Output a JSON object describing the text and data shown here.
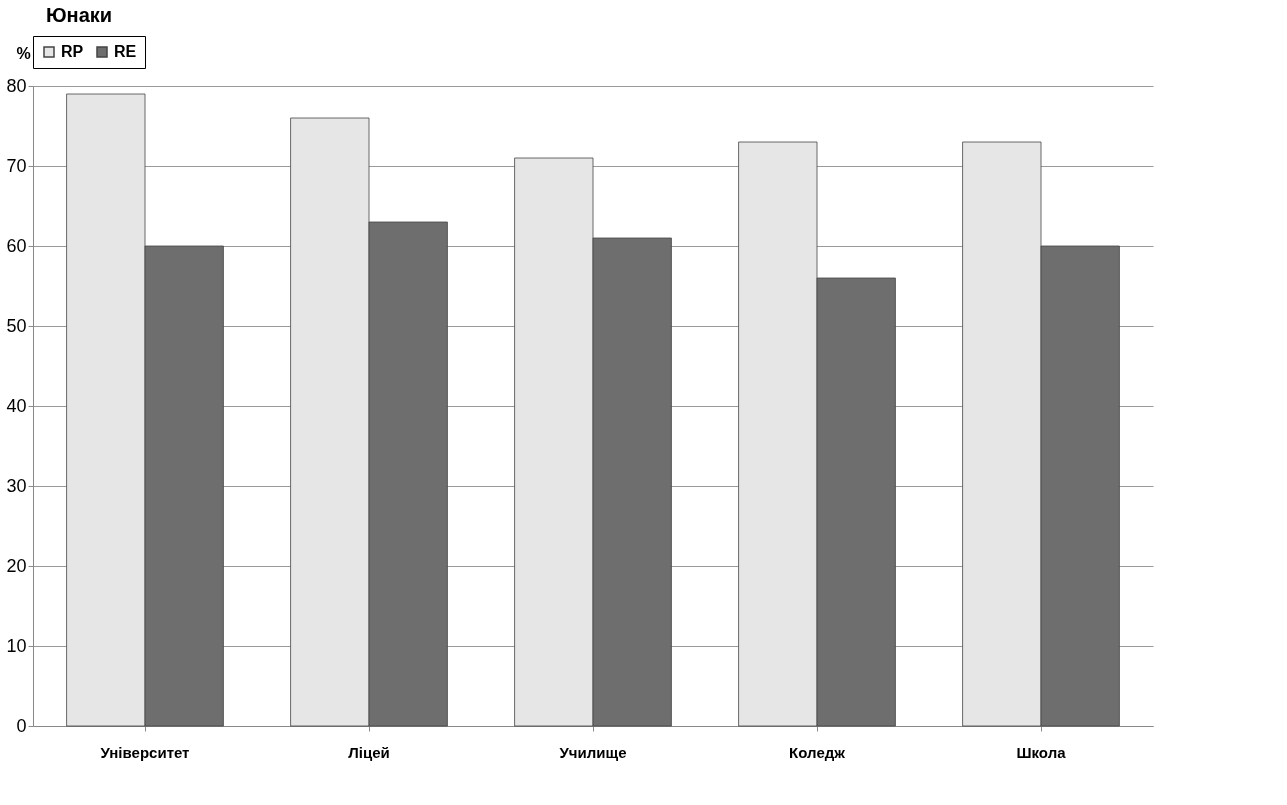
{
  "chart_data": {
    "type": "bar",
    "title": "Юнаки",
    "ylabel": "%",
    "categories": [
      "Університет",
      "Ліцей",
      "Училище",
      "Коледж",
      "Школа"
    ],
    "series": [
      {
        "name": "RP",
        "color": "#e6e6e6",
        "values": [
          79,
          76,
          71,
          73,
          73
        ]
      },
      {
        "name": "RE",
        "color": "#6e6e6e",
        "values": [
          60,
          63,
          61,
          56,
          60
        ]
      }
    ],
    "ylim": [
      0,
      80
    ],
    "yticks": [
      0,
      10,
      20,
      30,
      40,
      50,
      60,
      70,
      80
    ],
    "grid": "y",
    "legend": "top"
  }
}
